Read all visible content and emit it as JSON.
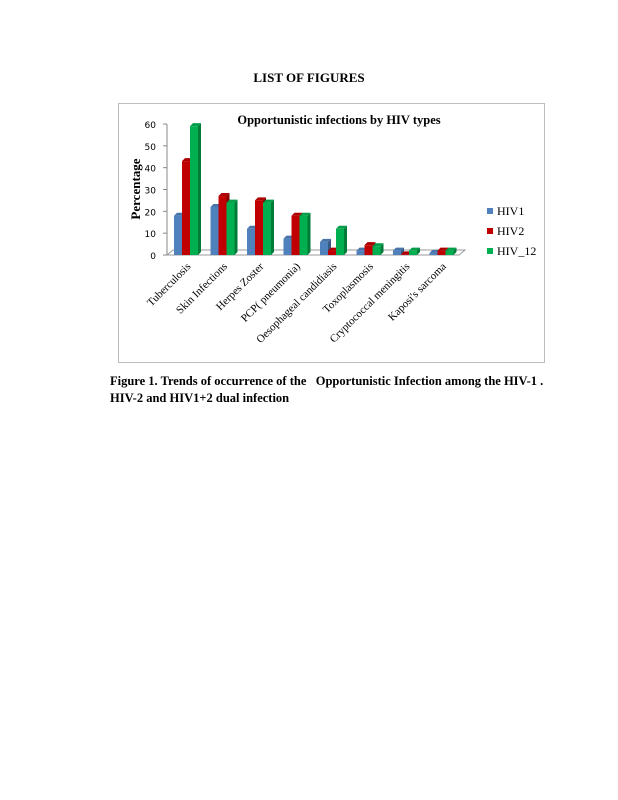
{
  "page": {
    "heading": "LIST OF FIGURES",
    "caption": "Figure 1. Trends of occurrence of the   Opportunistic Infection among the HIV-1 .\nHIV-2 and HIV1+2 dual infection"
  },
  "chart_data": {
    "type": "bar",
    "style": "3d-clustered-column",
    "title": "Opportunistic infections by HIV types",
    "xlabel": "",
    "ylabel": "Percentage",
    "ylim": [
      0,
      60
    ],
    "yticks": [
      "0",
      "10",
      "20",
      "30",
      "40",
      "50",
      "60"
    ],
    "grid": false,
    "legend_position": "right",
    "categories": [
      "Tuberculosis",
      "Skin Infections",
      "Herpes Zoster",
      "PCP( pneumonia)",
      "Oesophageal candidiasis",
      "Toxoplasmosis",
      "Cryptococcal meningitis",
      "Kaposi's sarcoma"
    ],
    "series": [
      {
        "name": "HIV1",
        "color": "#4f81bd",
        "values": [
          18,
          22,
          12,
          7.5,
          6,
          2,
          2,
          1
        ]
      },
      {
        "name": "HIV2",
        "color": "#c00000",
        "values": [
          43,
          27,
          25,
          18,
          2,
          4.5,
          0.3,
          2
        ]
      },
      {
        "name": "HIV_12",
        "color": "#00b050",
        "values": [
          59,
          24,
          24,
          18,
          12,
          4,
          2,
          2
        ]
      }
    ]
  }
}
